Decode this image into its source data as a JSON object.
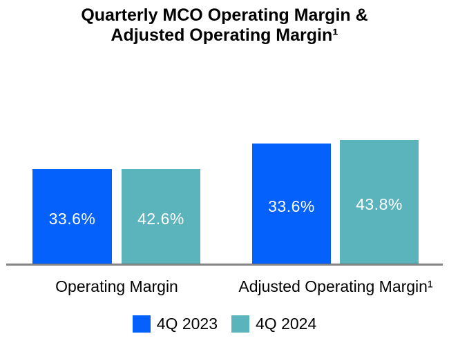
{
  "title": {
    "line1": "Quarterly MCO Operating Margin &",
    "line2": "Adjusted Operating Margin¹"
  },
  "legend": {
    "items": [
      {
        "label": "4Q 2023",
        "color": "#0561FB"
      },
      {
        "label": "4Q 2024",
        "color": "#5BB4BB"
      }
    ]
  },
  "chart_data": {
    "type": "bar",
    "title": "Quarterly MCO Operating Margin & Adjusted Operating Margin¹",
    "categories": [
      "Operating Margin",
      "Adjusted Operating Margin¹"
    ],
    "series": [
      {
        "name": "4Q 2023",
        "color": "#0561FB",
        "values": [
          33.6,
          42.6
        ]
      },
      {
        "name": "4Q 2024",
        "color": "#5BB4BB",
        "values": [
          33.6,
          43.8
        ]
      }
    ],
    "value_labels": [
      [
        "33.6%",
        "33.6%"
      ],
      [
        "42.6%",
        "43.8%"
      ]
    ],
    "xlabel": "",
    "ylabel": "",
    "ylim": [
      0,
      47
    ],
    "grid": false,
    "legend_position": "bottom",
    "axis_line_color": "#8A8A8A",
    "value_label_color": "#FFFFFF"
  }
}
